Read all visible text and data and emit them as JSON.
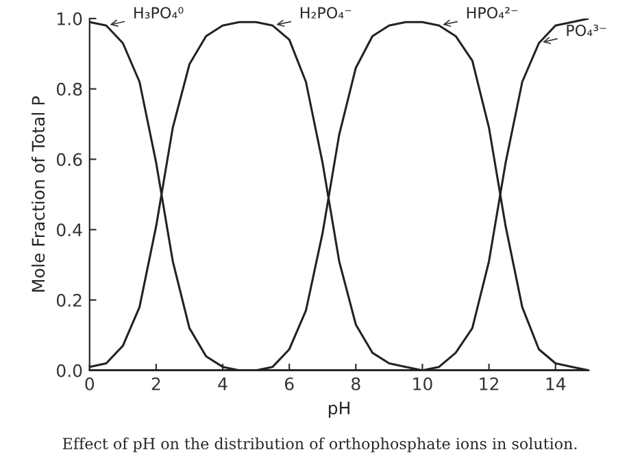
{
  "chart_data": {
    "type": "line",
    "xlabel": "pH",
    "ylabel": "Mole Fraction of Total P",
    "x": [
      0,
      0.5,
      1,
      1.5,
      2,
      2.5,
      3,
      3.5,
      4,
      4.5,
      5,
      5.5,
      6,
      6.5,
      7,
      7.5,
      8,
      8.5,
      9,
      9.5,
      10,
      10.5,
      11,
      11.5,
      12,
      12.5,
      13,
      13.5,
      14,
      14.5,
      15
    ],
    "series": [
      {
        "color": "#222222",
        "values": [
          0.99,
          0.98,
          0.93,
          0.82,
          0.59,
          0.31,
          0.12,
          0.04,
          0.01,
          0,
          0,
          0,
          0,
          0,
          0,
          0,
          0,
          0,
          0,
          0,
          0,
          0,
          0,
          0,
          0,
          0,
          0,
          0,
          0,
          0,
          0
        ]
      },
      {
        "color": "#222222",
        "values": [
          0.01,
          0.02,
          0.07,
          0.18,
          0.41,
          0.69,
          0.87,
          0.95,
          0.98,
          0.99,
          0.99,
          0.98,
          0.94,
          0.82,
          0.59,
          0.31,
          0.13,
          0.05,
          0.02,
          0.01,
          0,
          0,
          0,
          0,
          0,
          0,
          0,
          0,
          0,
          0,
          0
        ]
      },
      {
        "color": "#222222",
        "values": [
          0,
          0,
          0,
          0,
          0,
          0,
          0,
          0,
          0,
          0,
          0,
          0.01,
          0.06,
          0.17,
          0.39,
          0.67,
          0.86,
          0.95,
          0.98,
          0.99,
          0.99,
          0.98,
          0.95,
          0.88,
          0.69,
          0.41,
          0.18,
          0.06,
          0.02,
          0.01,
          0
        ]
      },
      {
        "color": "#222222",
        "values": [
          0,
          0,
          0,
          0,
          0,
          0,
          0,
          0,
          0,
          0,
          0,
          0,
          0,
          0,
          0,
          0,
          0,
          0,
          0,
          0,
          0,
          0.01,
          0.05,
          0.12,
          0.31,
          0.59,
          0.82,
          0.93,
          0.98,
          0.99,
          1.0
        ]
      }
    ],
    "xlim": [
      0,
      15
    ],
    "xticks": [
      0,
      2,
      4,
      6,
      8,
      10,
      12,
      14
    ],
    "ylim": [
      0,
      1
    ],
    "yticks": [
      {
        "value": 0,
        "label": "0.0"
      },
      0.2,
      0.4,
      0.6,
      0.8,
      {
        "value": 1,
        "label": "1.0"
      }
    ],
    "grid": false,
    "legend": false,
    "marker": "none",
    "line_style": "solid",
    "annotations": [
      {
        "text": "H₃PO₄⁰",
        "x": 0.5,
        "y": 0.98
      },
      {
        "text": "H₂PO₄⁻",
        "x": 5.5,
        "y": 0.98
      },
      {
        "text": "HPO₄²⁻",
        "x": 10.5,
        "y": 0.98
      },
      {
        "text": "PO₄³⁻",
        "x": 13.5,
        "y": 0.93
      },
      "Effect of pH on the distribution of orthophosphate ions in solution."
    ]
  }
}
